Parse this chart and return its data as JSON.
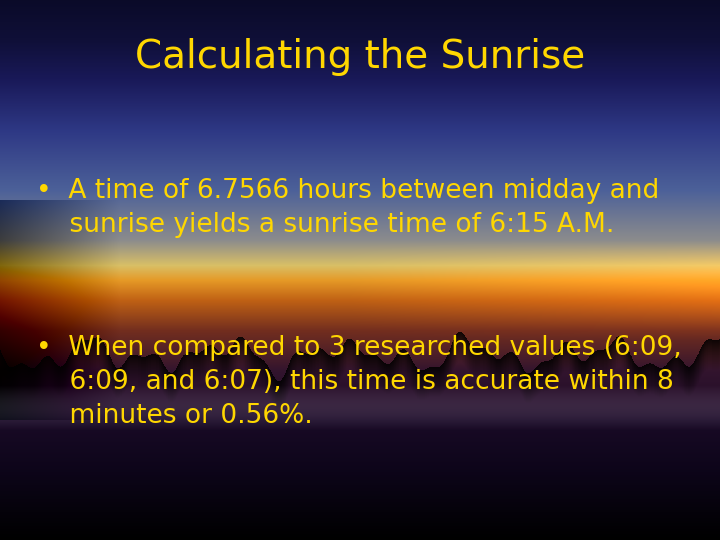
{
  "title": "Calculating the Sunrise",
  "title_color": "#FFD700",
  "title_fontsize": 28,
  "bullet1_text": "•  A time of 6.7566 hours between midday and\n    sunrise yields a sunrise time of 6:15 A.M.",
  "bullet2_text": "•  When compared to 3 researched values (6:09,\n    6:09, and 6:07), this time is accurate within 8\n    minutes or 0.56%.",
  "text_color": "#FFD700",
  "text_fontsize": 19,
  "figsize": [
    7.2,
    5.4
  ],
  "dpi": 100
}
